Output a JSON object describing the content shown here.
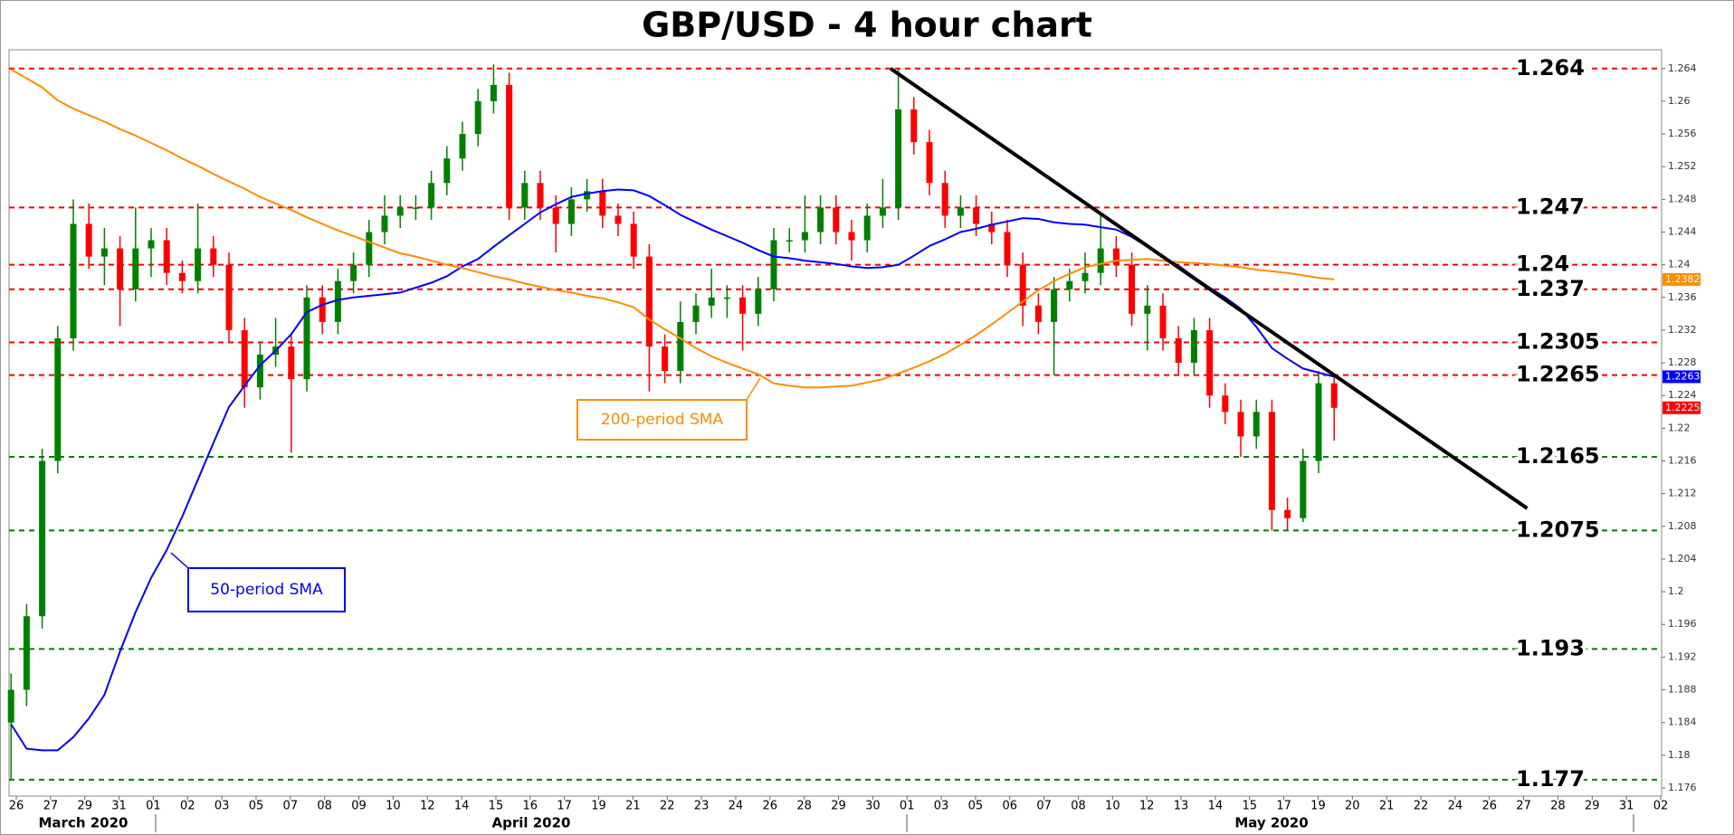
{
  "chart_data": {
    "type": "candlestick",
    "title": "GBP/USD - 4 hour chart",
    "up_color": "#008000",
    "down_color": "#ff0000",
    "open": [
      1.184,
      1.188,
      1.197,
      1.216,
      1.231,
      1.245,
      1.241,
      1.242,
      1.237,
      1.242,
      1.243,
      1.239,
      1.238,
      1.242,
      1.24,
      1.232,
      1.225,
      1.229,
      1.23,
      1.226,
      1.236,
      1.233,
      1.238,
      1.24,
      1.244,
      1.246,
      1.247,
      1.247,
      1.25,
      1.253,
      1.256,
      1.26,
      1.262,
      1.247,
      1.25,
      1.247,
      1.245,
      1.248,
      1.249,
      1.246,
      1.245,
      1.241,
      1.23,
      1.227,
      1.233,
      1.235,
      1.236,
      1.236,
      1.234,
      1.237,
      1.243,
      1.243,
      1.244,
      1.247,
      1.244,
      1.243,
      1.246,
      1.247,
      1.259,
      1.255,
      1.25,
      1.246,
      1.247,
      1.245,
      1.244,
      1.24,
      1.235,
      1.233,
      1.237,
      1.238,
      1.239,
      1.242,
      1.24,
      1.234,
      1.235,
      1.231,
      1.228,
      1.232,
      1.224,
      1.222,
      1.219,
      1.222,
      1.21,
      1.209,
      1.216,
      1.2255
    ],
    "high": [
      1.19,
      1.1985,
      1.2175,
      1.2325,
      1.248,
      1.2475,
      1.2445,
      1.2435,
      1.247,
      1.2445,
      1.2445,
      1.2405,
      1.2475,
      1.2435,
      1.2415,
      1.2335,
      1.2305,
      1.2335,
      1.2315,
      1.2375,
      1.2375,
      1.2395,
      1.2415,
      1.2455,
      1.2485,
      1.2485,
      1.2485,
      1.2515,
      1.2545,
      1.2575,
      1.2615,
      1.2645,
      1.2635,
      1.2515,
      1.2515,
      1.2485,
      1.2495,
      1.2505,
      1.2505,
      1.2475,
      1.2465,
      1.2425,
      1.2315,
      1.2355,
      1.2365,
      1.2395,
      1.2375,
      1.2375,
      1.2385,
      1.2445,
      1.2445,
      1.2485,
      1.2485,
      1.2485,
      1.2455,
      1.2475,
      1.2505,
      1.264,
      1.2605,
      1.2565,
      1.2515,
      1.2485,
      1.2485,
      1.2465,
      1.2455,
      1.2415,
      1.2365,
      1.2385,
      1.2395,
      1.2415,
      1.2465,
      1.2435,
      1.2415,
      1.2375,
      1.2365,
      1.2325,
      1.2335,
      1.2335,
      1.2255,
      1.2235,
      1.2235,
      1.2235,
      1.2115,
      1.2175,
      1.227,
      1.2265
    ],
    "low": [
      1.177,
      1.186,
      1.1955,
      1.2145,
      1.2295,
      1.2395,
      1.2375,
      1.2325,
      1.2355,
      1.2385,
      1.2375,
      1.2365,
      1.2365,
      1.2385,
      1.2305,
      1.2225,
      1.2235,
      1.2275,
      1.217,
      1.2245,
      1.2315,
      1.2315,
      1.2365,
      1.2385,
      1.2425,
      1.2445,
      1.2455,
      1.2455,
      1.2485,
      1.2515,
      1.2545,
      1.2585,
      1.2455,
      1.2455,
      1.2455,
      1.2415,
      1.2435,
      1.2465,
      1.2445,
      1.2435,
      1.2395,
      1.2245,
      1.2255,
      1.2255,
      1.2315,
      1.2335,
      1.2335,
      1.2295,
      1.2325,
      1.2355,
      1.2415,
      1.2415,
      1.2425,
      1.2425,
      1.2405,
      1.2415,
      1.2445,
      1.2455,
      1.2535,
      1.2485,
      1.2445,
      1.2445,
      1.2435,
      1.2425,
      1.2385,
      1.2325,
      1.2315,
      1.2265,
      1.2355,
      1.2365,
      1.2375,
      1.2385,
      1.2325,
      1.2295,
      1.2295,
      1.2265,
      1.2265,
      1.2225,
      1.2205,
      1.2165,
      1.2175,
      1.2075,
      1.2075,
      1.2085,
      1.2145,
      1.2185
    ],
    "close": [
      1.188,
      1.197,
      1.216,
      1.231,
      1.245,
      1.241,
      1.242,
      1.237,
      1.242,
      1.243,
      1.239,
      1.238,
      1.242,
      1.24,
      1.232,
      1.225,
      1.229,
      1.23,
      1.226,
      1.236,
      1.233,
      1.238,
      1.24,
      1.244,
      1.246,
      1.247,
      1.247,
      1.25,
      1.253,
      1.256,
      1.26,
      1.262,
      1.247,
      1.25,
      1.247,
      1.245,
      1.248,
      1.249,
      1.246,
      1.245,
      1.241,
      1.23,
      1.227,
      1.233,
      1.235,
      1.236,
      1.236,
      1.234,
      1.237,
      1.243,
      1.243,
      1.244,
      1.247,
      1.244,
      1.243,
      1.246,
      1.247,
      1.259,
      1.255,
      1.25,
      1.246,
      1.247,
      1.245,
      1.244,
      1.24,
      1.235,
      1.233,
      1.237,
      1.238,
      1.239,
      1.242,
      1.24,
      1.234,
      1.235,
      1.231,
      1.228,
      1.232,
      1.224,
      1.222,
      1.219,
      1.222,
      1.21,
      1.209,
      1.216,
      1.2255,
      1.2225
    ],
    "sma": [
      {
        "name": "50-period SMA",
        "color": "#0000ff",
        "values": [
          1.1838,
          1.1808,
          1.1806,
          1.1806,
          1.1822,
          1.1845,
          1.1874,
          1.1927,
          1.1975,
          1.2017,
          1.2051,
          1.2092,
          1.2137,
          1.2182,
          1.2226,
          1.2252,
          1.2277,
          1.2295,
          1.2315,
          1.2342,
          1.2351,
          1.2357,
          1.236,
          1.2362,
          1.2364,
          1.2366,
          1.2372,
          1.2378,
          1.2386,
          1.2398,
          1.2407,
          1.2422,
          1.2436,
          1.245,
          1.2464,
          1.2474,
          1.2483,
          1.2487,
          1.249,
          1.2492,
          1.2491,
          1.2484,
          1.2473,
          1.2461,
          1.2452,
          1.2443,
          1.2435,
          1.2427,
          1.2418,
          1.241,
          1.2408,
          1.2405,
          1.2403,
          1.2401,
          1.2398,
          1.2396,
          1.2397,
          1.24,
          1.2411,
          1.2423,
          1.2431,
          1.244,
          1.2444,
          1.2449,
          1.2453,
          1.2457,
          1.2456,
          1.2452,
          1.245,
          1.2449,
          1.2446,
          1.2443,
          1.2434,
          1.2422,
          1.2409,
          1.2399,
          1.2385,
          1.2372,
          1.236,
          1.2346,
          1.2324,
          1.2298,
          1.2285,
          1.2273,
          1.2268,
          1.2263
        ]
      },
      {
        "name": "200-period SMA",
        "color": "#ff8c00",
        "values": [
          1.2639,
          1.2628,
          1.2617,
          1.2601,
          1.2591,
          1.2583,
          1.2575,
          1.2566,
          1.2558,
          1.2549,
          1.254,
          1.253,
          1.2521,
          1.2511,
          1.2502,
          1.2493,
          1.2483,
          1.2475,
          1.2467,
          1.2458,
          1.245,
          1.2442,
          1.2435,
          1.2428,
          1.2421,
          1.2414,
          1.241,
          1.2405,
          1.24,
          1.2396,
          1.2391,
          1.2386,
          1.2382,
          1.2377,
          1.2373,
          1.2369,
          1.2366,
          1.2362,
          1.2359,
          1.2354,
          1.2348,
          1.2333,
          1.2321,
          1.231,
          1.2298,
          1.2288,
          1.228,
          1.2273,
          1.2266,
          1.2255,
          1.2252,
          1.225,
          1.225,
          1.2251,
          1.2252,
          1.2256,
          1.226,
          1.2267,
          1.2274,
          1.2282,
          1.2291,
          1.2302,
          1.2314,
          1.2327,
          1.2341,
          1.2355,
          1.2369,
          1.238,
          1.2389,
          1.2397,
          1.2401,
          1.2405,
          1.2406,
          1.2407,
          1.2405,
          1.2403,
          1.2402,
          1.2401,
          1.2399,
          1.2397,
          1.2394,
          1.2392,
          1.239,
          1.2387,
          1.2384,
          1.2382
        ]
      }
    ],
    "levels": [
      {
        "value": 1.264,
        "color": "#ff0000"
      },
      {
        "value": 1.247,
        "color": "#ff0000"
      },
      {
        "value": 1.24,
        "color": "#ff0000"
      },
      {
        "value": 1.237,
        "color": "#ff0000"
      },
      {
        "value": 1.2305,
        "color": "#ff0000"
      },
      {
        "value": 1.2265,
        "color": "#ff0000"
      },
      {
        "value": 1.2165,
        "color": "#008000"
      },
      {
        "value": 1.2075,
        "color": "#008000"
      },
      {
        "value": 1.193,
        "color": "#008000"
      },
      {
        "value": 1.177,
        "color": "#008000"
      }
    ],
    "trendline": {
      "start": [
        56.5,
        1.264
      ],
      "end": [
        97.4,
        1.2102
      ],
      "color": "#000000"
    },
    "ylim": [
      1.175,
      1.2663
    ],
    "yticks": [
      1.176,
      1.18,
      1.184,
      1.188,
      1.192,
      1.196,
      1.2,
      1.204,
      1.208,
      1.212,
      1.216,
      1.22,
      1.224,
      1.228,
      1.232,
      1.236,
      1.24,
      1.244,
      1.248,
      1.252,
      1.256,
      1.26,
      1.264
    ],
    "x_labels": [
      "26",
      "27",
      "29",
      "31",
      "01",
      "02",
      "03",
      "05",
      "07",
      "08",
      "09",
      "10",
      "12",
      "14",
      "15",
      "16",
      "17",
      "19",
      "21",
      "22",
      "23",
      "24",
      "26",
      "28",
      "29",
      "30",
      "01",
      "03",
      "05",
      "06",
      "07",
      "08",
      "10",
      "12",
      "13",
      "14",
      "15",
      "17",
      "19",
      "20",
      "21",
      "22",
      "24",
      "26",
      "27",
      "28",
      "29",
      "31",
      "02"
    ],
    "months": [
      "March 2020",
      "April 2020",
      "May 2020"
    ]
  }
}
